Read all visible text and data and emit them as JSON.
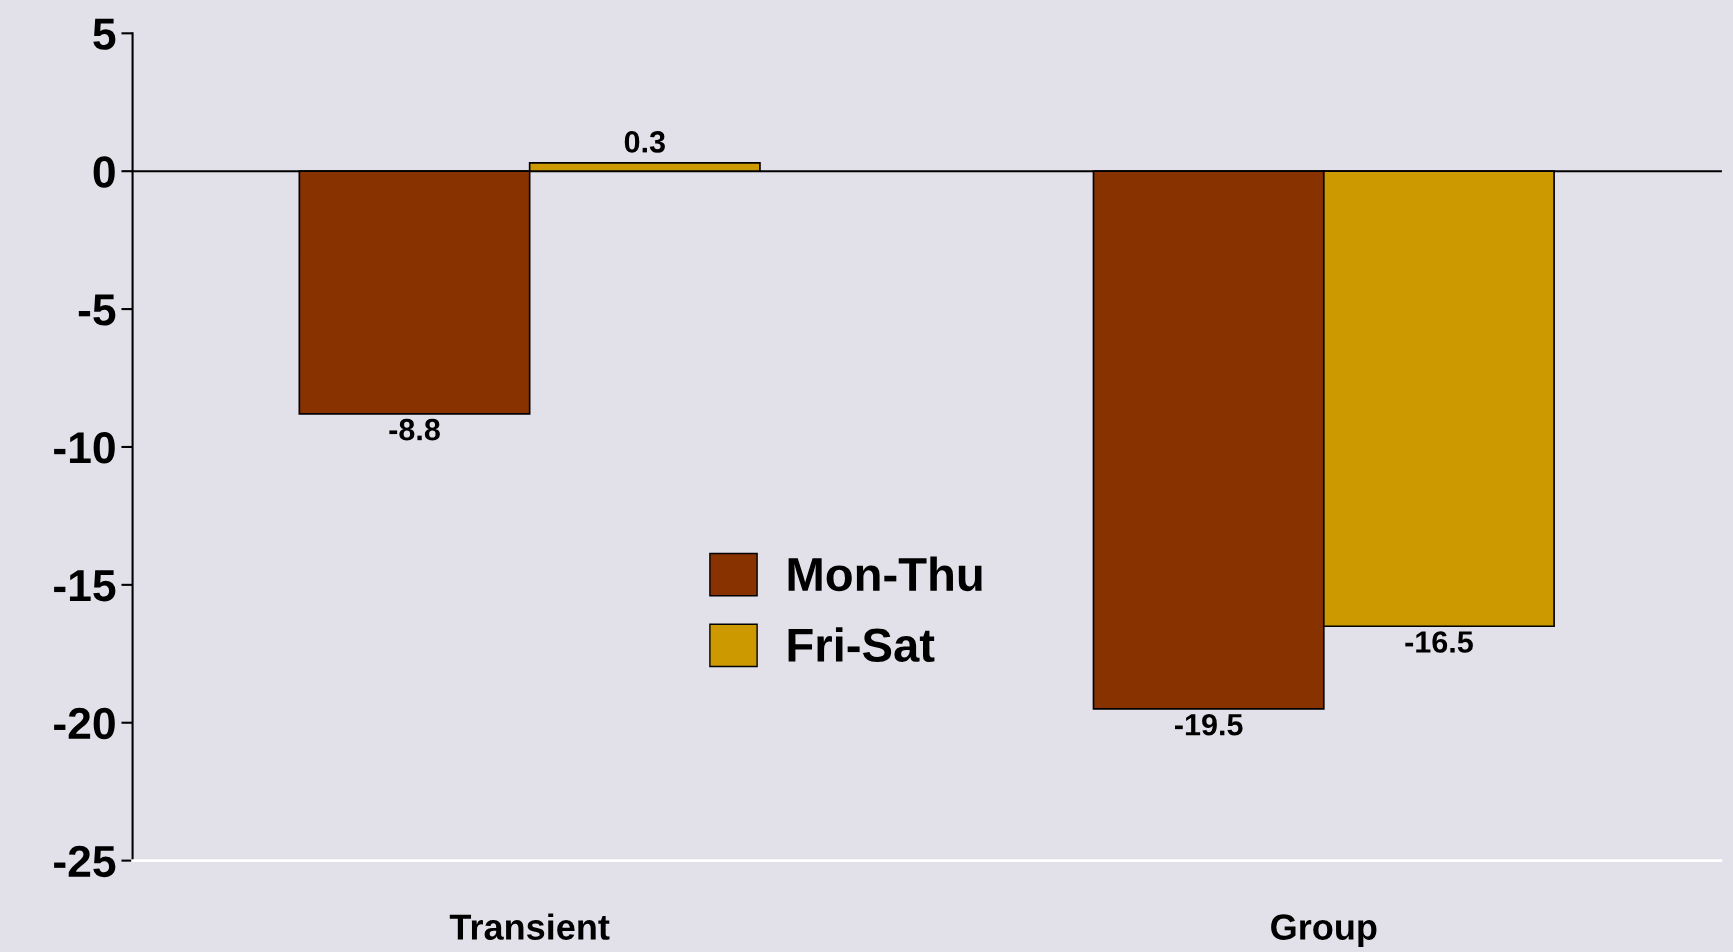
{
  "chart_data": {
    "type": "bar",
    "categories": [
      "Transient",
      "Group"
    ],
    "series": [
      {
        "name": "Mon-Thu",
        "color": "#883200",
        "values": [
          -8.8,
          -19.5
        ]
      },
      {
        "name": "Fri-Sat",
        "color": "#cc9900",
        "values": [
          0.3,
          -16.5
        ]
      }
    ],
    "ylim": [
      -25,
      5
    ],
    "yticks": [
      -25,
      -20,
      -15,
      -10,
      -5,
      0,
      5
    ],
    "data_labels": true,
    "legend": "center"
  }
}
